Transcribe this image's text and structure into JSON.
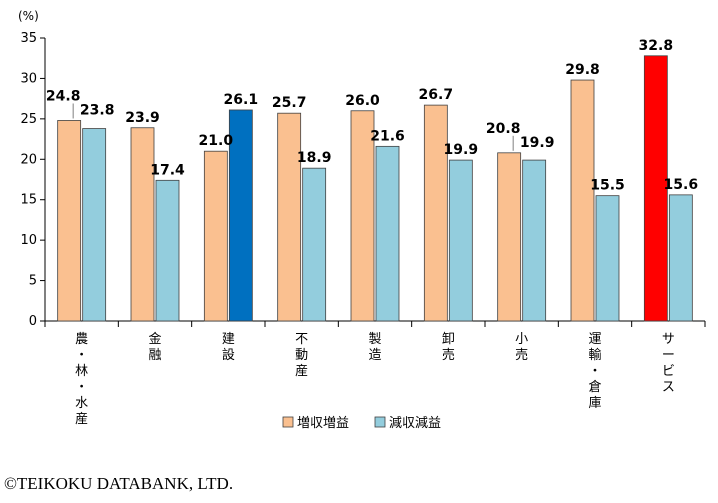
{
  "chart_data": {
    "type": "bar",
    "ylabel": "(%)",
    "ylim": [
      0,
      35
    ],
    "yticks": [
      0,
      5,
      10,
      15,
      20,
      25,
      30,
      35
    ],
    "grid": false,
    "legend_position": "bottom",
    "categories": [
      "農・林・水産",
      "金融",
      "建設",
      "不動産",
      "製造",
      "卸売",
      "小売",
      "運輸・倉庫",
      "サービス"
    ],
    "series": [
      {
        "name": "増収増益",
        "color": "#FAC090",
        "values": [
          24.8,
          23.9,
          21.0,
          25.7,
          26.0,
          26.7,
          20.8,
          29.8,
          32.8
        ],
        "labels": [
          "24.8",
          "23.9",
          "21.0",
          "25.7",
          "26.0",
          "26.7",
          "20.8",
          "29.8",
          "32.8"
        ]
      },
      {
        "name": "減収減益",
        "color": "#93CDDD",
        "values": [
          23.8,
          17.4,
          26.1,
          18.9,
          21.6,
          19.9,
          19.9,
          15.5,
          15.6
        ],
        "labels": [
          "23.8",
          "17.4",
          "26.1",
          "18.9",
          "21.6",
          "19.9",
          "19.9",
          "15.5",
          "15.6"
        ]
      }
    ],
    "highlights": [
      {
        "series": 1,
        "index": 2,
        "color": "#0070C0"
      },
      {
        "series": 0,
        "index": 8,
        "color": "#FF0000"
      }
    ]
  },
  "copyright": "©TEIKOKU DATABANK, LTD."
}
